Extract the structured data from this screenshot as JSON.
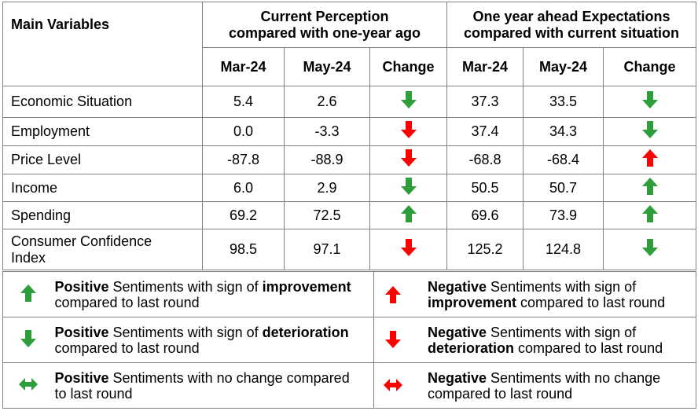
{
  "header": {
    "main_variables": "Main Variables",
    "current_line1": "Current Perception",
    "current_line2": "compared with one-year ago",
    "ahead_line1": "One year ahead Expectations",
    "ahead_line2": "compared with current situation",
    "subheaders": [
      "Mar-24",
      "May-24",
      "Change",
      "Mar-24",
      "May-24",
      "Change"
    ]
  },
  "rows": [
    {
      "name": "Economic Situation",
      "cur_mar": "5.4",
      "cur_may": "2.6",
      "cur_change": "positive-deterioration",
      "exp_mar": "37.3",
      "exp_may": "33.5",
      "exp_change": "positive-deterioration"
    },
    {
      "name": "Employment",
      "cur_mar": "0.0",
      "cur_may": "-3.3",
      "cur_change": "negative-deterioration",
      "exp_mar": "37.4",
      "exp_may": "34.3",
      "exp_change": "positive-deterioration"
    },
    {
      "name": "Price Level",
      "cur_mar": "-87.8",
      "cur_may": "-88.9",
      "cur_change": "negative-deterioration",
      "exp_mar": "-68.8",
      "exp_may": "-68.4",
      "exp_change": "negative-improvement"
    },
    {
      "name": "Income",
      "cur_mar": "6.0",
      "cur_may": "2.9",
      "cur_change": "positive-deterioration",
      "exp_mar": "50.5",
      "exp_may": "50.7",
      "exp_change": "positive-improvement"
    },
    {
      "name": "Spending",
      "cur_mar": "69.2",
      "cur_may": "72.5",
      "cur_change": "positive-improvement",
      "exp_mar": "69.6",
      "exp_may": "73.9",
      "exp_change": "positive-improvement"
    },
    {
      "name_line1": "Consumer Confidence",
      "name_line2": "Index",
      "cur_mar": "98.5",
      "cur_may": "97.1",
      "cur_change": "negative-deterioration",
      "exp_mar": "125.2",
      "exp_may": "124.8",
      "exp_change": "positive-deterioration"
    }
  ],
  "legend": {
    "pos_improve": {
      "bold1": "Positive",
      "text1": " Sentiments with sign of ",
      "bold2": "improvement",
      "line2": "compared to last round"
    },
    "neg_improve": {
      "bold1": "Negative",
      "text1": " Sentiments with sign of",
      "bold2": "improvement",
      "line2": " compared to last round"
    },
    "pos_deter": {
      "bold1": "Positive",
      "text1": " Sentiments with sign of ",
      "bold2": "deterioration",
      "line2": "compared to last round"
    },
    "neg_deter": {
      "bold1": "Negative",
      "text1": " Sentiments with sign of",
      "bold2": "deterioration",
      "line2": " compared to last round"
    },
    "pos_nochange": {
      "bold1": "Positive",
      "text1": " Sentiments with no change compared",
      "line2": "to last round"
    },
    "neg_nochange": {
      "bold1": "Negative",
      "text1": " Sentiments with no change",
      "line2": "compared to last round"
    }
  },
  "colors": {
    "green": "#2e9e3a",
    "red": "#ff0000"
  },
  "icons": {
    "positive-improvement": "green-up-arrow-icon",
    "positive-deterioration": "green-down-arrow-icon",
    "negative-improvement": "red-up-arrow-icon",
    "negative-deterioration": "red-down-arrow-icon",
    "positive-nochange": "green-double-arrow-icon",
    "negative-nochange": "red-double-arrow-icon"
  }
}
